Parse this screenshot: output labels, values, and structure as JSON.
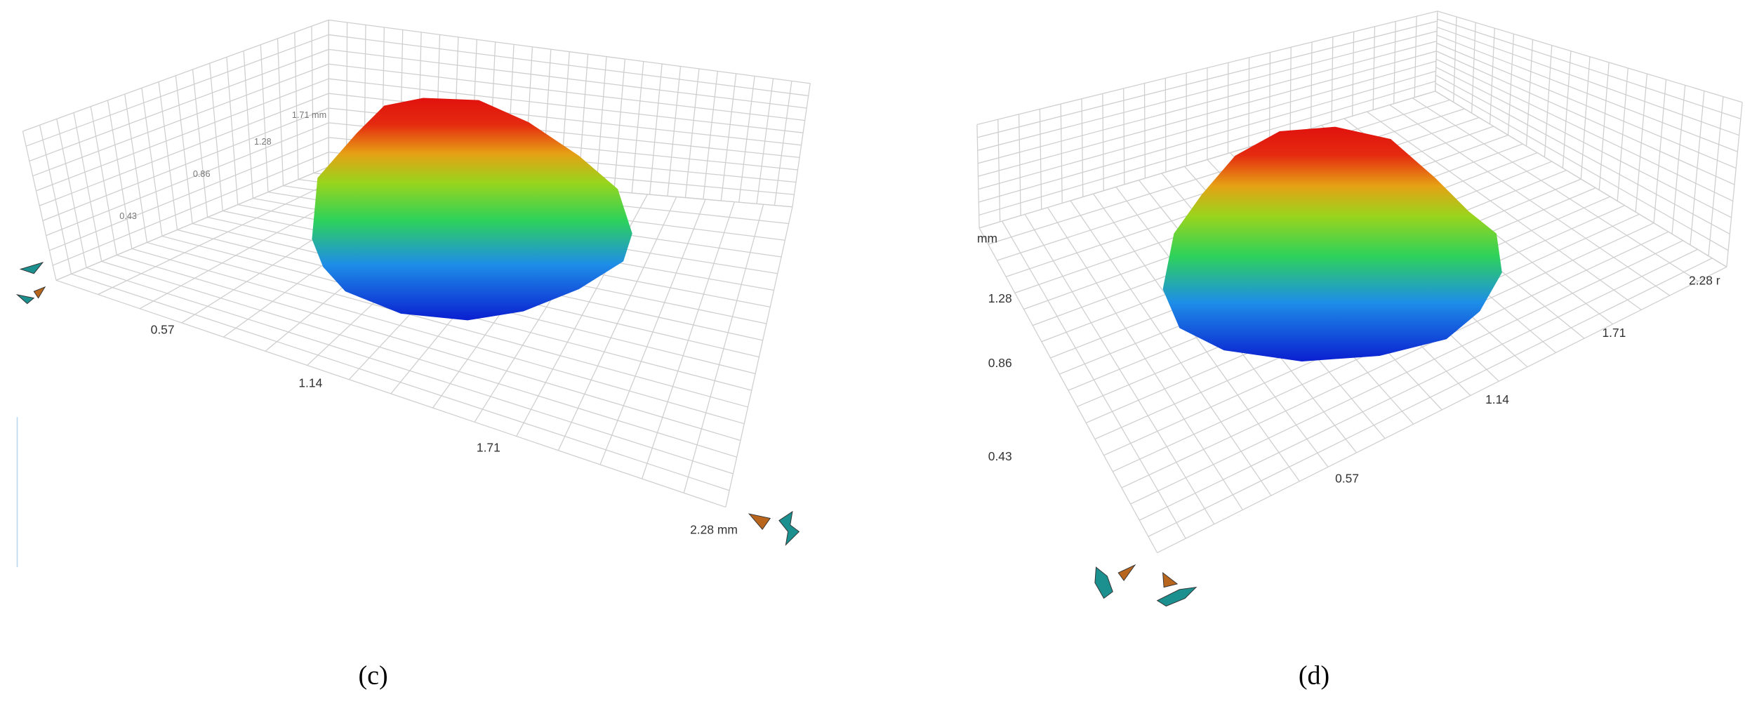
{
  "panels": [
    {
      "label": "(c)",
      "x_ticks": [
        "0.57",
        "1.14",
        "1.71",
        "2.28 mm"
      ],
      "z_ticks": [
        "0.43",
        "0.86",
        "1.28",
        "1.71 mm"
      ]
    },
    {
      "label": "(d)",
      "x_ticks": [
        "0.57",
        "1.14",
        "1.71",
        "2.28 r"
      ],
      "y_ticks": [
        "1.28",
        "0.86",
        "0.43"
      ],
      "z_unit": "mm"
    }
  ]
}
